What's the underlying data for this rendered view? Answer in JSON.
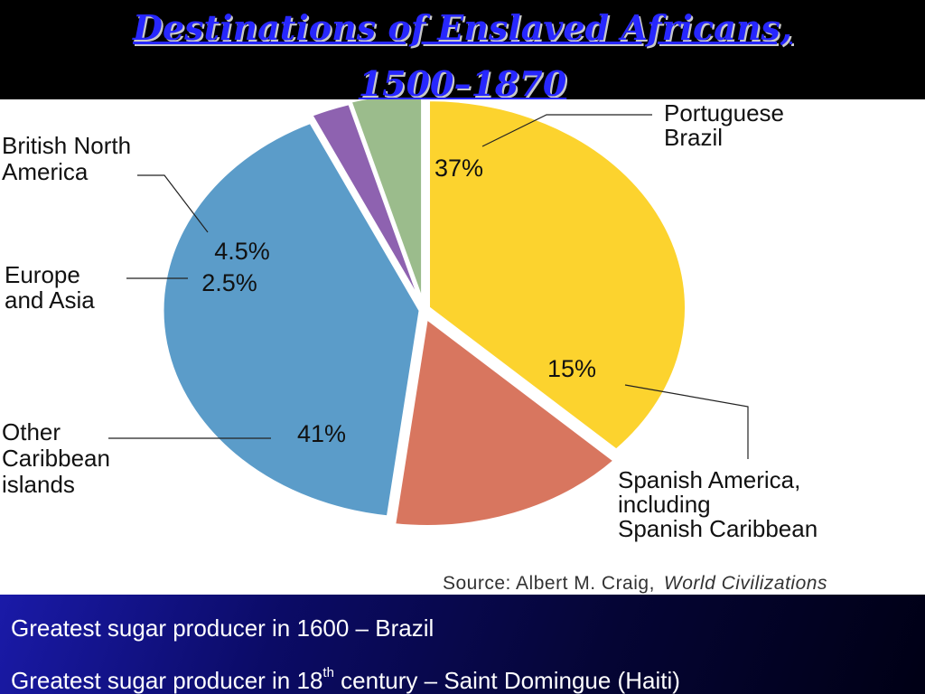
{
  "slide": {
    "title_line1": "Destinations of Enslaved Africans,",
    "title_line2": "1500–1870",
    "source_prefix": "Source: Albert  M.  Craig,",
    "source_work": "World  Civilizations",
    "bullets": [
      {
        "text": "Greatest sugar producer in 1600 – Brazil"
      },
      {
        "pre": "Greatest sugar producer in 18",
        "sup": "th",
        "post": " century – Saint Domingue (Haiti)"
      }
    ]
  },
  "chart_data": {
    "type": "pie",
    "title": "",
    "slices": [
      {
        "label": [
          "Portuguese",
          "Brazil"
        ],
        "value": 37,
        "display": "37%",
        "color": "#fcd32e"
      },
      {
        "label": [
          "Spanish America,",
          "including",
          "Spanish Caribbean"
        ],
        "value": 15,
        "display": "15%",
        "color": "#d8765f"
      },
      {
        "label": [
          "Other",
          "Caribbean",
          "islands"
        ],
        "value": 41,
        "display": "41%",
        "color": "#5b9cc9"
      },
      {
        "label": [
          "Europe",
          "and Asia"
        ],
        "value": 2.5,
        "display": "2.5%",
        "color": "#8e62b0"
      },
      {
        "label": [
          "British North",
          "America"
        ],
        "value": 4.5,
        "display": "4.5%",
        "color": "#9bbc8c"
      }
    ]
  }
}
